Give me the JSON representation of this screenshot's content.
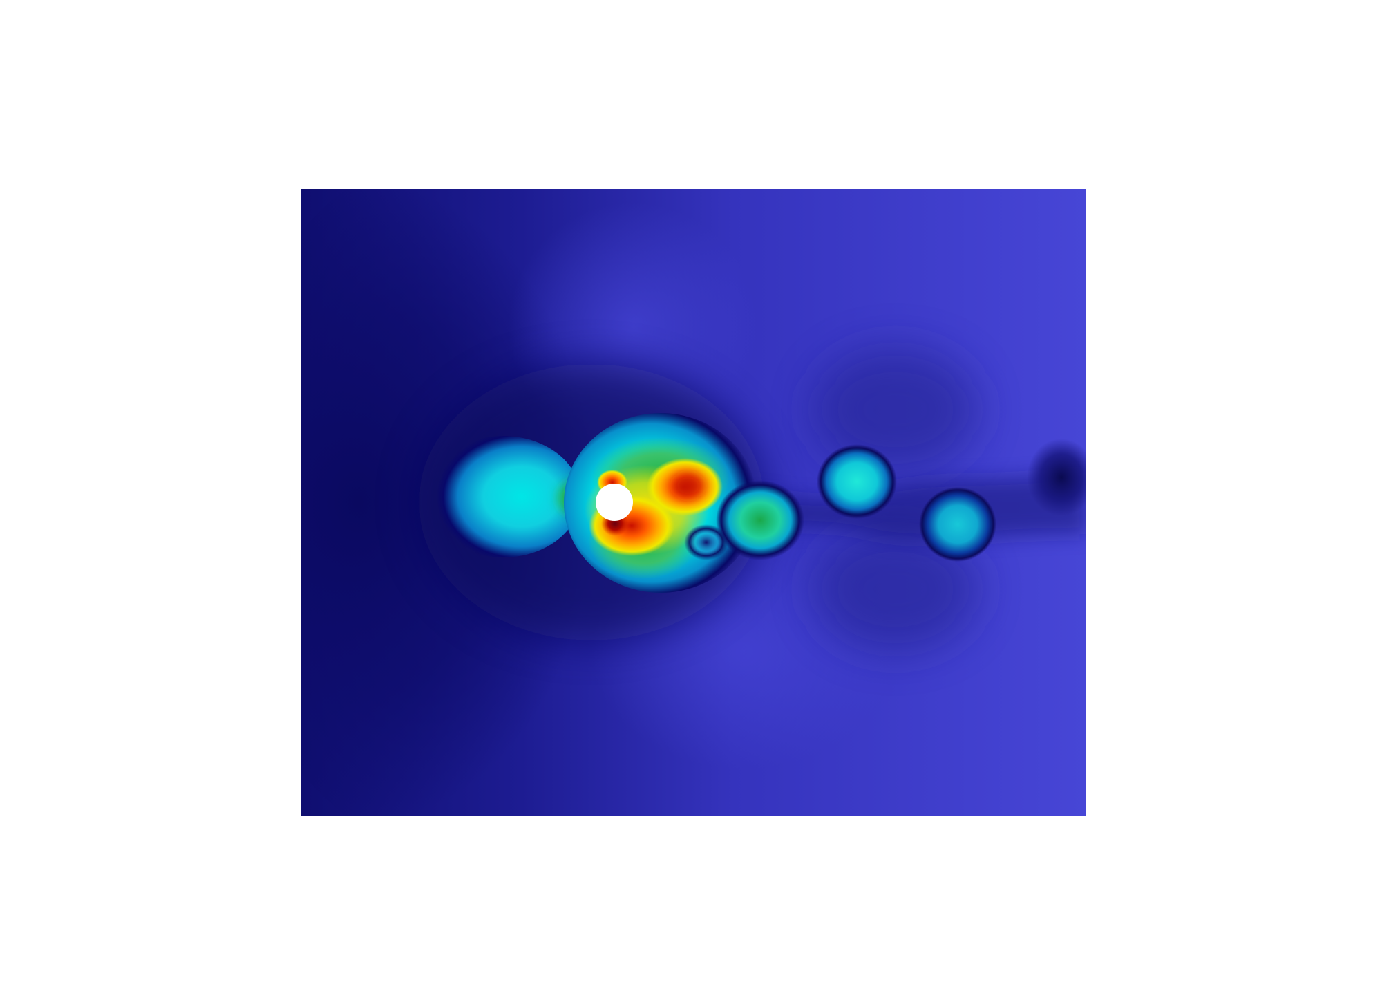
{
  "figure": {
    "kind": "flow-field-contour",
    "colormap": "jet",
    "background_color": "#ffffff",
    "cylinder_color": "#ffffff",
    "domain_colors": {
      "inlet_dark": "#0e0d6e",
      "domain_mid": "#3a38c2",
      "outlet_light": "#4948d9"
    },
    "colormap_stops": [
      "#0b0b66",
      "#2f2fb8",
      "#4444d8",
      "#00c8e0",
      "#22e0c0",
      "#1fb050",
      "#f2e600",
      "#ff8a00",
      "#e02000",
      "#7a0010"
    ]
  }
}
